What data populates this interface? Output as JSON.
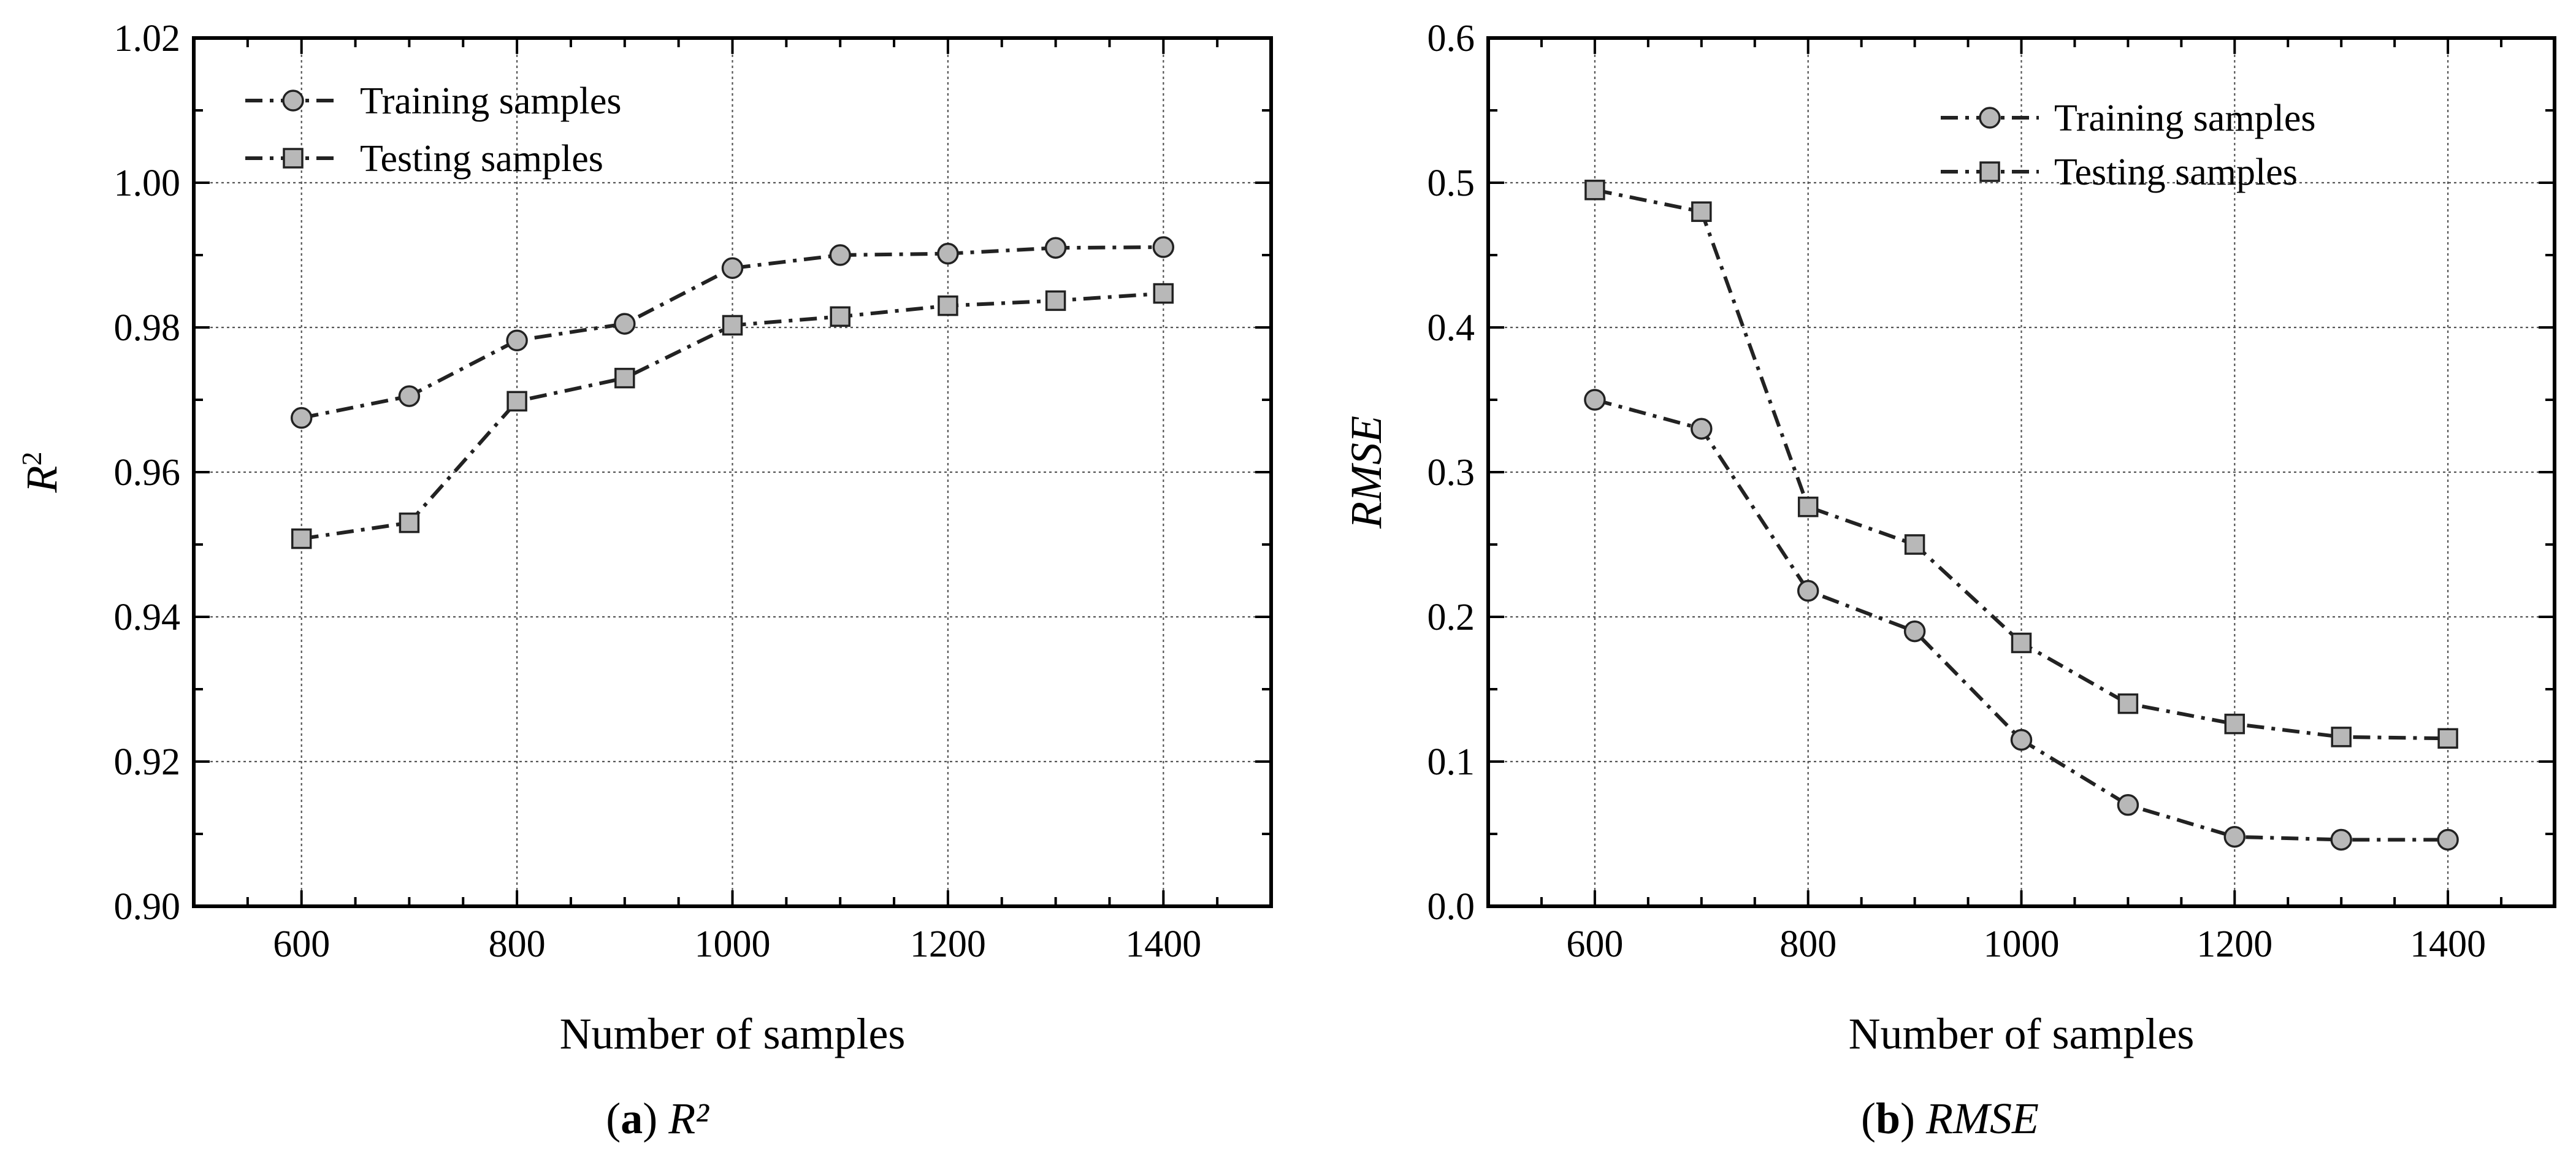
{
  "chart_data": [
    {
      "type": "line",
      "caption": {
        "letter": "a",
        "text": "R²"
      },
      "xlabel": "Number of samples",
      "ylabel": {
        "base": "R",
        "sup": "2"
      },
      "xlim": [
        500,
        1500
      ],
      "ylim": [
        0.9,
        1.02
      ],
      "xticks": [
        600,
        800,
        1000,
        1200,
        1400
      ],
      "xtick_labels": [
        "600",
        "800",
        "1000",
        "1200",
        "1400"
      ],
      "yticks": [
        0.9,
        0.92,
        0.94,
        0.96,
        0.98,
        1.0,
        1.02
      ],
      "ytick_labels": [
        "0.90",
        "0.92",
        "0.94",
        "0.96",
        "0.98",
        "1.00",
        "1.02"
      ],
      "grid": true,
      "legend_position": "top-left",
      "x": [
        600,
        700,
        800,
        900,
        1000,
        1100,
        1200,
        1300,
        1400
      ],
      "series": [
        {
          "name": "Training samples",
          "marker": "circle",
          "values": [
            0.9675,
            0.9705,
            0.9782,
            0.9805,
            0.9882,
            0.99,
            0.9902,
            0.991,
            0.9911
          ]
        },
        {
          "name": "Testing samples",
          "marker": "square",
          "values": [
            0.9508,
            0.953,
            0.9698,
            0.973,
            0.9803,
            0.9815,
            0.983,
            0.9837,
            0.9847
          ]
        }
      ]
    },
    {
      "type": "line",
      "caption": {
        "letter": "b",
        "text": "RMSE"
      },
      "xlabel": "Number of samples",
      "ylabel": {
        "base": "RMSE",
        "sup": ""
      },
      "xlim": [
        500,
        1500
      ],
      "ylim": [
        0.0,
        0.6
      ],
      "xticks": [
        600,
        800,
        1000,
        1200,
        1400
      ],
      "xtick_labels": [
        "600",
        "800",
        "1000",
        "1200",
        "1400"
      ],
      "yticks": [
        0.0,
        0.1,
        0.2,
        0.3,
        0.4,
        0.5,
        0.6
      ],
      "ytick_labels": [
        "0.0",
        "0.1",
        "0.2",
        "0.3",
        "0.4",
        "0.5",
        "0.6"
      ],
      "grid": true,
      "legend_position": "top-right",
      "x": [
        600,
        700,
        800,
        900,
        1000,
        1100,
        1200,
        1300,
        1400
      ],
      "series": [
        {
          "name": "Training samples",
          "marker": "circle",
          "values": [
            0.35,
            0.33,
            0.218,
            0.19,
            0.115,
            0.07,
            0.048,
            0.046,
            0.046
          ]
        },
        {
          "name": "Testing samples",
          "marker": "square",
          "values": [
            0.495,
            0.48,
            0.276,
            0.25,
            0.182,
            0.14,
            0.126,
            0.117,
            0.116
          ]
        }
      ]
    }
  ]
}
